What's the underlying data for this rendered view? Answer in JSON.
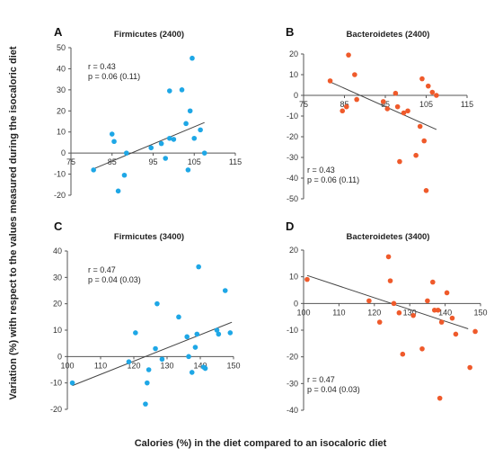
{
  "figure": {
    "ylabel": "Variation (%) with respect to the values measured during the isocaloric diet",
    "xlabel": "Calories (%) in the diet compared to an isocaloric diet"
  },
  "colors": {
    "Firmicutes": "#1ea7e6",
    "Bacteroidetes": "#ef5a2b",
    "axis": "#555555",
    "line": "#444444"
  },
  "chart_data": [
    {
      "type": "scatter",
      "panel": "A",
      "title": "Firmicutes (2400)",
      "xlim": [
        75,
        115
      ],
      "ylim": [
        -20,
        50
      ],
      "xticks": [
        75,
        85,
        95,
        105,
        115
      ],
      "yticks": [
        -20,
        -10,
        0,
        10,
        20,
        30,
        40,
        50
      ],
      "xtick_labels": [
        "75",
        "85",
        "95",
        "105",
        "115"
      ],
      "ytick_labels": [
        "-20",
        "-10",
        "0",
        "10",
        "20",
        "30",
        "40",
        "50"
      ],
      "annotation": [
        "r = 0.43",
        "p = 0.06 (0.11)"
      ],
      "color": "Firmicutes",
      "points": [
        [
          80.5,
          -8
        ],
        [
          85,
          9
        ],
        [
          85.5,
          5.5
        ],
        [
          86.5,
          -18
        ],
        [
          88,
          -10.5
        ],
        [
          88.5,
          0
        ],
        [
          94.5,
          2.5
        ],
        [
          97,
          4.5
        ],
        [
          98,
          -2.5
        ],
        [
          99,
          29.5
        ],
        [
          99,
          7
        ],
        [
          100,
          6.5
        ],
        [
          102,
          30
        ],
        [
          103,
          14
        ],
        [
          103.5,
          -8
        ],
        [
          104,
          20
        ],
        [
          104.5,
          45
        ],
        [
          105,
          7
        ],
        [
          106.5,
          11
        ],
        [
          107.5,
          0
        ]
      ],
      "fit": [
        [
          80.5,
          -7.5
        ],
        [
          107.5,
          14.5
        ]
      ]
    },
    {
      "type": "scatter",
      "panel": "B",
      "title": "Bacteroidetes (2400)",
      "xlim": [
        75,
        115
      ],
      "ylim": [
        -50,
        20
      ],
      "xticks": [
        75,
        85,
        95,
        105,
        115
      ],
      "yticks": [
        -50,
        -40,
        -30,
        -20,
        -10,
        0,
        10,
        20
      ],
      "xtick_labels": [
        "75",
        "85",
        "95",
        "105",
        "115"
      ],
      "ytick_labels": [
        "-50",
        "-40",
        "-30",
        "-20",
        "-10",
        "0",
        "10",
        "20"
      ],
      "annotation": [
        "r = 0.43",
        "p = 0.06 (0.11)"
      ],
      "color": "Bacteroidetes",
      "points": [
        [
          81.5,
          7
        ],
        [
          84.5,
          -7.5
        ],
        [
          85.5,
          -5.5
        ],
        [
          86,
          19.5
        ],
        [
          87.5,
          10
        ],
        [
          88,
          -2
        ],
        [
          94.5,
          -3
        ],
        [
          95.5,
          -6.5
        ],
        [
          97.5,
          1
        ],
        [
          98,
          -5.5
        ],
        [
          98.5,
          -32
        ],
        [
          99.5,
          -8.5
        ],
        [
          100.5,
          -7.5
        ],
        [
          102.5,
          -29
        ],
        [
          103.5,
          -15
        ],
        [
          104,
          8
        ],
        [
          104.5,
          -22
        ],
        [
          105,
          -46
        ],
        [
          105.5,
          4.5
        ],
        [
          106.5,
          1.5
        ],
        [
          107.5,
          0
        ]
      ],
      "fit": [
        [
          81.5,
          6.5
        ],
        [
          107.5,
          -16.5
        ]
      ]
    },
    {
      "type": "scatter",
      "panel": "C",
      "title": "Firmicutes (3400)",
      "xlim": [
        100,
        150
      ],
      "ylim": [
        -20,
        40
      ],
      "xticks": [
        100,
        110,
        120,
        130,
        140,
        150
      ],
      "yticks": [
        -20,
        -10,
        0,
        10,
        20,
        30,
        40
      ],
      "xtick_labels": [
        "100",
        "110",
        "120",
        "130",
        "140",
        "150"
      ],
      "ytick_labels": [
        "-20",
        "-10",
        "0",
        "10",
        "20",
        "30",
        "40"
      ],
      "annotation": [
        "r = 0.47",
        "p = 0.04 (0.03)"
      ],
      "color": "Firmicutes",
      "points": [
        [
          101.5,
          -10
        ],
        [
          118.5,
          -2
        ],
        [
          120.5,
          9
        ],
        [
          123.5,
          -18
        ],
        [
          124,
          -10
        ],
        [
          124.5,
          -5
        ],
        [
          126.5,
          3
        ],
        [
          127,
          20
        ],
        [
          128.5,
          -1
        ],
        [
          133.5,
          15
        ],
        [
          136,
          7.5
        ],
        [
          136.5,
          0
        ],
        [
          137.5,
          -6
        ],
        [
          138.5,
          3.5
        ],
        [
          139,
          8.5
        ],
        [
          139.5,
          34
        ],
        [
          141,
          -4
        ],
        [
          141.5,
          -4.5
        ],
        [
          145,
          10
        ],
        [
          145.5,
          8.5
        ],
        [
          147.5,
          25
        ],
        [
          149,
          9
        ]
      ],
      "fit": [
        [
          101.5,
          -11
        ],
        [
          149.5,
          13
        ]
      ]
    },
    {
      "type": "scatter",
      "panel": "D",
      "title": "Bacteroidetes (3400)",
      "xlim": [
        100,
        150
      ],
      "ylim": [
        -40,
        20
      ],
      "xticks": [
        100,
        110,
        120,
        130,
        140,
        150
      ],
      "yticks": [
        -40,
        -30,
        -20,
        -10,
        0,
        10,
        20
      ],
      "xtick_labels": [
        "100",
        "110",
        "120",
        "130",
        "140",
        "150"
      ],
      "ytick_labels": [
        "-40",
        "-30",
        "-20",
        "-10",
        "0",
        "10",
        "20"
      ],
      "annotation": [
        "r = 0.47",
        "p = 0.04 (0.03)"
      ],
      "color": "Bacteroidetes",
      "points": [
        [
          101,
          9
        ],
        [
          118.5,
          1
        ],
        [
          121.5,
          -7
        ],
        [
          124,
          17.5
        ],
        [
          124.5,
          8.5
        ],
        [
          125.5,
          0
        ],
        [
          127,
          -3.5
        ],
        [
          128,
          -19
        ],
        [
          131,
          -4.5
        ],
        [
          133.5,
          -17
        ],
        [
          135,
          1
        ],
        [
          136.5,
          8
        ],
        [
          137,
          -2.5
        ],
        [
          138,
          -2.5
        ],
        [
          138.5,
          -35.5
        ],
        [
          139,
          -7
        ],
        [
          140.5,
          4
        ],
        [
          142,
          -5.5
        ],
        [
          143,
          -11.5
        ],
        [
          147,
          -24
        ],
        [
          148.5,
          -10.5
        ]
      ],
      "fit": [
        [
          101,
          10.5
        ],
        [
          146.5,
          -9.5
        ]
      ]
    }
  ]
}
